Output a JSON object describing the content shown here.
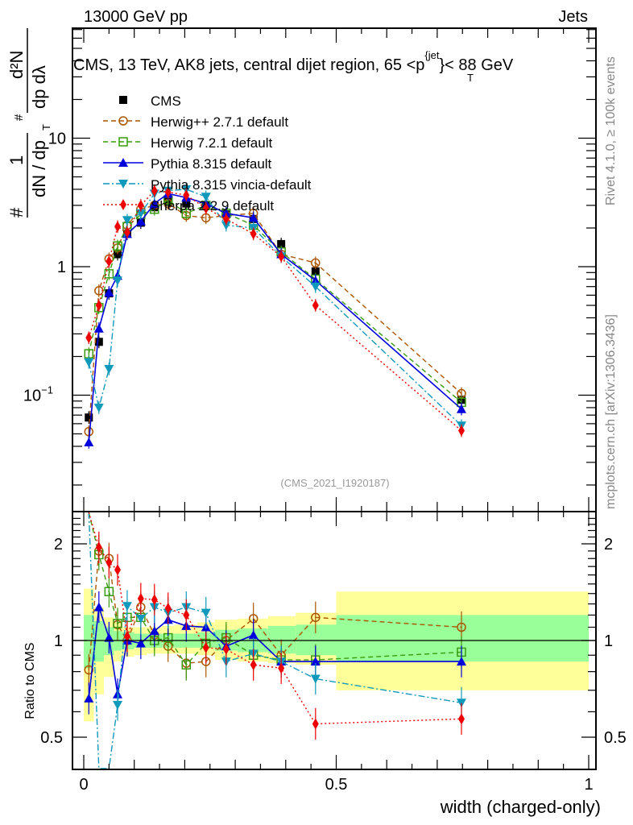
{
  "header": {
    "left_label": "13000 GeV pp",
    "right_label": "Jets"
  },
  "side_labels": {
    "rivet": "Rivet 4.1.0, ≥ 100k events",
    "mcplots": "mcplots.cern.ch [arXiv:1306.3436]"
  },
  "chart_data": [
    {
      "type": "line",
      "panel": "main",
      "title": "CMS, 13 TeV, AK8 jets, central dijet region, 65 <p_T^{jet}< 88 GeV",
      "title_parts": {
        "pre": "CMS, 13 TeV, AK8 jets, central dijet region, 65 <p",
        "sup": "{jet",
        "sub": "T",
        "post": "}< 88 GeV"
      },
      "analysis_id": "(CMS_2021_I1920187)",
      "ylabel": "1/dN/dp_T # d^2N/dp_T # dλ",
      "ylabel_parts": {
        "frac_num": "1",
        "frac_den": "dN / dp",
        "hash": "#",
        "num2": "d²N",
        "den2": "dp  dλ",
        "sub": "T"
      },
      "yscale": "log",
      "ylim": [
        0.012,
        45
      ],
      "yticks": [
        {
          "v": 0.1,
          "label": "10",
          "sup": "−1"
        },
        {
          "v": 1,
          "label": "1"
        },
        {
          "v": 10,
          "label": "10"
        }
      ],
      "xlim": [
        -0.01,
        1.0
      ],
      "legend_position": "top-left",
      "x": [
        0.01,
        0.03,
        0.05,
        0.067,
        0.086,
        0.113,
        0.14,
        0.167,
        0.203,
        0.242,
        0.282,
        0.336,
        0.391,
        0.459,
        0.748
      ],
      "series": [
        {
          "name": "CMS",
          "color": "#000000",
          "marker": "square-filled",
          "line": "none",
          "values": [
            0.067,
            0.26,
            0.62,
            1.25,
            1.8,
            2.2,
            2.9,
            3.2,
            3.1,
            3.0,
            2.55,
            2.35,
            1.5,
            0.92,
            0.092
          ]
        },
        {
          "name": "Herwig++ 2.7.1 default",
          "color": "#aa5500",
          "marker": "circle-open",
          "line": "dashed",
          "values": [
            0.052,
            0.65,
            1.15,
            1.4,
            2.1,
            2.8,
            3.0,
            3.1,
            2.5,
            2.4,
            2.5,
            2.6,
            1.25,
            1.07,
            0.103
          ]
        },
        {
          "name": "Herwig 7.2.1 default",
          "color": "#3a9b0f",
          "marker": "square-open",
          "line": "dashed",
          "values": [
            0.21,
            0.48,
            0.88,
            1.45,
            2.05,
            2.55,
            2.8,
            3.3,
            2.6,
            3.0,
            2.6,
            2.1,
            1.3,
            0.8,
            0.088
          ]
        },
        {
          "name": "Pythia 8.315 default",
          "color": "#0000dd",
          "marker": "triangle-up-filled",
          "line": "solid",
          "values": [
            0.043,
            0.33,
            0.63,
            0.85,
            1.8,
            2.25,
            3.1,
            3.7,
            3.45,
            3.1,
            2.6,
            2.4,
            1.25,
            0.78,
            0.078
          ]
        },
        {
          "name": "Pythia 8.315 vincia-default",
          "color": "#1199bb",
          "marker": "triangle-down-filled",
          "line": "dashdot",
          "values": [
            0.18,
            0.08,
            0.16,
            0.78,
            2.3,
            2.6,
            3.7,
            3.9,
            4.0,
            3.5,
            2.1,
            2.0,
            1.2,
            0.7,
            0.058
          ]
        },
        {
          "name": "Sherpa 2.2.9 default",
          "color": "#ee0000",
          "marker": "diamond-filled",
          "line": "dotted",
          "values": [
            0.28,
            0.5,
            1.1,
            2.05,
            1.85,
            3.0,
            3.9,
            3.8,
            3.6,
            2.85,
            2.35,
            1.8,
            1.2,
            0.5,
            0.053
          ]
        }
      ],
      "legend_labels": [
        "CMS",
        "Herwig++ 2.7.1 default",
        "Herwig 7.2.1 default",
        "Pythia 8.315 default",
        "Pythia 8.315 vincia-default",
        "Sherpa 2.2.9 default"
      ]
    },
    {
      "type": "line",
      "panel": "ratio",
      "ylabel": "Ratio to CMS",
      "xlabel": "width (charged-only)",
      "yscale": "log",
      "ylim": [
        0.42,
        2.5
      ],
      "yticks": [
        {
          "v": 0.5,
          "label": "0.5"
        },
        {
          "v": 1,
          "label": "1"
        },
        {
          "v": 2,
          "label": "2"
        }
      ],
      "xticks": [
        {
          "v": 0,
          "label": "0"
        },
        {
          "v": 0.5,
          "label": "0.5"
        },
        {
          "v": 1,
          "label": "1"
        }
      ],
      "xlim": [
        -0.01,
        1.0
      ],
      "reference_line": 1,
      "bins": [
        0.0,
        0.02,
        0.04,
        0.06,
        0.075,
        0.1,
        0.125,
        0.155,
        0.18,
        0.225,
        0.26,
        0.305,
        0.365,
        0.42,
        0.5,
        1.0
      ],
      "band_inner": [
        [
          0.82,
          1.2
        ],
        [
          0.86,
          1.15
        ],
        [
          0.9,
          1.1
        ],
        [
          0.93,
          1.07
        ],
        [
          0.94,
          1.06
        ],
        [
          0.95,
          1.05
        ],
        [
          0.95,
          1.05
        ],
        [
          0.95,
          1.05
        ],
        [
          0.95,
          1.05
        ],
        [
          0.95,
          1.06
        ],
        [
          0.93,
          1.08
        ],
        [
          0.92,
          1.09
        ],
        [
          0.91,
          1.11
        ],
        [
          0.9,
          1.12
        ],
        [
          0.86,
          1.2
        ]
      ],
      "band_outer": [
        [
          0.56,
          1.45
        ],
        [
          0.68,
          1.27
        ],
        [
          0.77,
          1.18
        ],
        [
          0.86,
          1.14
        ],
        [
          0.89,
          1.1
        ],
        [
          0.9,
          1.1
        ],
        [
          0.91,
          1.1
        ],
        [
          0.91,
          1.11
        ],
        [
          0.91,
          1.12
        ],
        [
          0.9,
          1.14
        ],
        [
          0.87,
          1.16
        ],
        [
          0.86,
          1.17
        ],
        [
          0.85,
          1.19
        ],
        [
          0.84,
          1.22
        ],
        [
          0.7,
          1.42
        ]
      ],
      "x": [
        0.01,
        0.03,
        0.05,
        0.067,
        0.086,
        0.113,
        0.14,
        0.167,
        0.203,
        0.242,
        0.282,
        0.336,
        0.391,
        0.459,
        0.748
      ],
      "series": [
        {
          "name": "Herwig++ 2.7.1 default",
          "color": "#aa5500",
          "marker": "circle-open",
          "line": "dashed",
          "values": [
            0.81,
            1.9,
            1.8,
            1.12,
            1.0,
            1.27,
            1.04,
            0.96,
            0.85,
            0.86,
            1.0,
            1.17,
            0.9,
            1.18,
            1.1
          ]
        },
        {
          "name": "Herwig 7.2.1 default",
          "color": "#3a9b0f",
          "marker": "square-open",
          "line": "dashed",
          "values": [
            3.1,
            1.85,
            1.42,
            1.13,
            1.18,
            1.18,
            1.0,
            1.02,
            0.84,
            0.98,
            1.02,
            0.9,
            0.87,
            0.87,
            0.92
          ]
        },
        {
          "name": "Pythia 8.315 default",
          "color": "#0000dd",
          "marker": "triangle-up-filled",
          "line": "solid",
          "values": [
            0.66,
            1.27,
            1.02,
            0.68,
            1.0,
            0.98,
            1.07,
            1.16,
            1.11,
            1.1,
            0.96,
            1.04,
            0.86,
            0.86,
            0.86
          ]
        },
        {
          "name": "Pythia 8.315 vincia-default",
          "color": "#1199bb",
          "marker": "triangle-down-filled",
          "line": "dashdot",
          "values": [
            2.7,
            0.3,
            0.26,
            0.63,
            1.28,
            1.17,
            1.27,
            1.22,
            1.27,
            1.22,
            0.86,
            0.91,
            0.86,
            0.76,
            0.64
          ]
        },
        {
          "name": "Sherpa 2.2.9 default",
          "color": "#ee0000",
          "marker": "diamond-filled",
          "line": "dotted",
          "values": [
            4.2,
            1.95,
            1.75,
            1.66,
            1.03,
            1.35,
            1.34,
            1.26,
            1.2,
            0.95,
            0.94,
            0.84,
            0.82,
            0.55,
            0.57
          ]
        }
      ],
      "band_colors": {
        "inner": "#99ff99",
        "outer": "#ffff99"
      }
    }
  ]
}
